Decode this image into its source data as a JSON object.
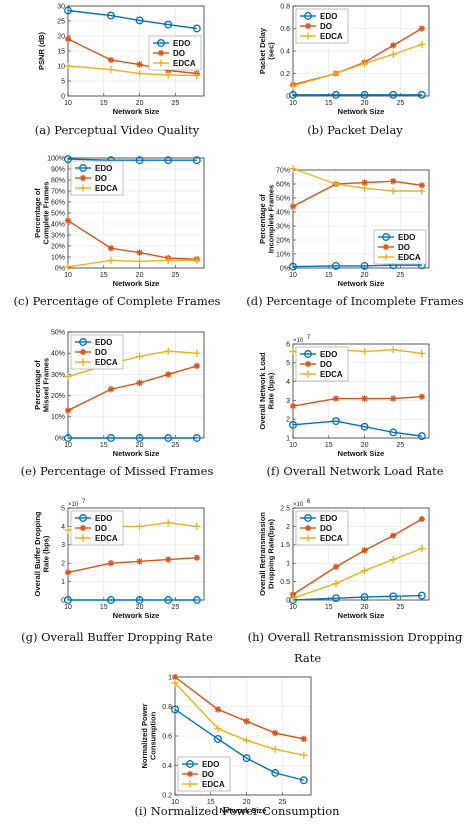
{
  "colors": {
    "EDO": "#0072BD",
    "DO": "#D95319",
    "EDCA": "#EDB120"
  },
  "chart_data": [
    {
      "id": "a",
      "type": "line",
      "caption": "(a) Perceptual Video Quality",
      "xlabel": "Network Size",
      "ylabel": "PSNR (dB)",
      "xlim": [
        10,
        29
      ],
      "ylim": [
        0,
        30
      ],
      "xticks": [
        10,
        15,
        20,
        25
      ],
      "yticks": [
        0,
        5,
        10,
        15,
        20,
        25,
        30
      ],
      "ytick_labels": [
        "0",
        "5",
        "10",
        "15",
        "20",
        "25",
        "30"
      ],
      "exponent": "",
      "legend": "right",
      "x": [
        10,
        16,
        20,
        24,
        28
      ],
      "series": [
        {
          "name": "EDO",
          "marker": "circle",
          "values": [
            28.5,
            26.8,
            25.2,
            23.8,
            22.5
          ]
        },
        {
          "name": "DO",
          "marker": "star",
          "values": [
            19,
            12,
            10.5,
            8.5,
            7.5
          ]
        },
        {
          "name": "EDCA",
          "marker": "plus",
          "values": [
            10,
            8.8,
            7.5,
            7,
            6.8
          ]
        }
      ]
    },
    {
      "id": "b",
      "type": "line",
      "caption": "(b) Packet Delay",
      "xlabel": "Network Size",
      "ylabel": "Packet Delay (sec)",
      "xlim": [
        10,
        29
      ],
      "ylim": [
        0,
        0.8
      ],
      "xticks": [
        10,
        15,
        20,
        25
      ],
      "yticks": [
        0,
        0.2,
        0.4,
        0.6,
        0.8
      ],
      "ytick_labels": [
        "0",
        "0.2",
        "0.4",
        "0.6",
        "0.8"
      ],
      "exponent": "",
      "legend": "top-left",
      "x": [
        10,
        16,
        20,
        24,
        28
      ],
      "series": [
        {
          "name": "EDO",
          "marker": "circle",
          "values": [
            0.01,
            0.01,
            0.01,
            0.01,
            0.01
          ]
        },
        {
          "name": "DO",
          "marker": "star",
          "values": [
            0.1,
            0.2,
            0.3,
            0.45,
            0.6
          ]
        },
        {
          "name": "EDCA",
          "marker": "plus",
          "values": [
            0.09,
            0.2,
            0.29,
            0.37,
            0.46
          ]
        }
      ]
    },
    {
      "id": "c",
      "type": "line",
      "caption": "(c) Percentage of Complete Frames",
      "xlabel": "Network Size",
      "ylabel": "Percentage of Complete Frames",
      "xlim": [
        10,
        29
      ],
      "ylim": [
        0,
        100
      ],
      "xticks": [
        10,
        15,
        20,
        25
      ],
      "yticks": [
        0,
        10,
        20,
        30,
        40,
        50,
        60,
        70,
        80,
        90,
        100
      ],
      "ytick_labels": [
        "0%",
        "10%",
        "20%",
        "30%",
        "40%",
        "50%",
        "60%",
        "70%",
        "80%",
        "90%",
        "100%"
      ],
      "exponent": "",
      "legend": "top-left",
      "x": [
        10,
        16,
        20,
        24,
        28
      ],
      "series": [
        {
          "name": "EDO",
          "marker": "circle",
          "values": [
            99,
            98,
            98,
            98,
            98
          ]
        },
        {
          "name": "DO",
          "marker": "star",
          "values": [
            43,
            18,
            14,
            9,
            8
          ]
        },
        {
          "name": "EDCA",
          "marker": "plus",
          "values": [
            1,
            7,
            6,
            7,
            7
          ]
        }
      ]
    },
    {
      "id": "d",
      "type": "line",
      "caption": "(d) Percentage of Incomplete Frames",
      "xlabel": "Network Size",
      "ylabel": "Percentage of Incomplete Frames",
      "xlim": [
        10,
        29
      ],
      "ylim": [
        0,
        70
      ],
      "xticks": [
        10,
        15,
        20,
        25
      ],
      "yticks": [
        0,
        10,
        20,
        30,
        40,
        50,
        60,
        70
      ],
      "ytick_labels": [
        "0%",
        "10%",
        "20%",
        "30%",
        "40%",
        "50%",
        "60%",
        "70%"
      ],
      "exponent": "",
      "legend": "bottom-right",
      "x": [
        10,
        16,
        20,
        24,
        28
      ],
      "series": [
        {
          "name": "EDO",
          "marker": "circle",
          "values": [
            1,
            1.5,
            1.5,
            2,
            2
          ]
        },
        {
          "name": "DO",
          "marker": "star",
          "values": [
            44,
            60,
            61,
            62,
            59
          ]
        },
        {
          "name": "EDCA",
          "marker": "plus",
          "values": [
            71,
            60,
            57,
            55,
            55
          ]
        }
      ]
    },
    {
      "id": "e",
      "type": "line",
      "caption": "(e) Percentage of Missed Frames",
      "xlabel": "Network Size",
      "ylabel": "Percentage of Missed Frames",
      "xlim": [
        10,
        29
      ],
      "ylim": [
        0,
        50
      ],
      "xticks": [
        10,
        15,
        20,
        25
      ],
      "yticks": [
        0,
        10,
        20,
        30,
        40,
        50
      ],
      "ytick_labels": [
        "0%",
        "10%",
        "20%",
        "30%",
        "40%",
        "50%"
      ],
      "exponent": "",
      "legend": "top-left",
      "x": [
        10,
        16,
        20,
        24,
        28
      ],
      "series": [
        {
          "name": "EDO",
          "marker": "circle",
          "values": [
            0,
            0,
            0,
            0,
            0
          ]
        },
        {
          "name": "DO",
          "marker": "star",
          "values": [
            13,
            23,
            26,
            30,
            34
          ]
        },
        {
          "name": "EDCA",
          "marker": "plus",
          "values": [
            29,
            35,
            38.5,
            41,
            40
          ]
        }
      ]
    },
    {
      "id": "f",
      "type": "line",
      "caption": "(f) Overall Network Load Rate",
      "xlabel": "Network Size",
      "ylabel": "Overall Network Load Rate (bps)",
      "xlim": [
        10,
        29
      ],
      "ylim": [
        1,
        6
      ],
      "xticks": [
        10,
        15,
        20,
        25
      ],
      "yticks": [
        1,
        2,
        3,
        4,
        5,
        6
      ],
      "ytick_labels": [
        "1",
        "2",
        "3",
        "4",
        "5",
        "6"
      ],
      "exponent": "7",
      "legend": "top-left",
      "x": [
        10,
        16,
        20,
        24,
        28
      ],
      "series": [
        {
          "name": "EDO",
          "marker": "circle",
          "values": [
            1.7,
            1.9,
            1.6,
            1.3,
            1.1
          ]
        },
        {
          "name": "DO",
          "marker": "star",
          "values": [
            2.7,
            3.1,
            3.1,
            3.1,
            3.2
          ]
        },
        {
          "name": "EDCA",
          "marker": "plus",
          "values": [
            5.6,
            5.7,
            5.6,
            5.7,
            5.5
          ]
        }
      ]
    },
    {
      "id": "g",
      "type": "line",
      "caption": "(g) Overall Buffer Dropping Rate",
      "xlabel": "Network Size",
      "ylabel": "Overall Buffer Dropping Rate (bps)",
      "xlim": [
        10,
        29
      ],
      "ylim": [
        0,
        5
      ],
      "xticks": [
        10,
        15,
        20,
        25
      ],
      "yticks": [
        0,
        1,
        2,
        3,
        4,
        5
      ],
      "ytick_labels": [
        "0",
        "1",
        "2",
        "3",
        "4",
        "5"
      ],
      "exponent": "7",
      "legend": "top-left",
      "x": [
        10,
        16,
        20,
        24,
        28
      ],
      "series": [
        {
          "name": "EDO",
          "marker": "circle",
          "values": [
            0,
            0,
            0,
            0,
            0
          ]
        },
        {
          "name": "DO",
          "marker": "star",
          "values": [
            1.5,
            2,
            2.1,
            2.2,
            2.3
          ]
        },
        {
          "name": "EDCA",
          "marker": "plus",
          "values": [
            3.8,
            4,
            4,
            4.2,
            4
          ]
        }
      ]
    },
    {
      "id": "h",
      "type": "line",
      "caption": "(h) Overall Retransmission Dropping",
      "caption2": "Rate",
      "xlabel": "Network Size",
      "ylabel": "Overall Retransmission Dropping Rate(bps)",
      "xlim": [
        10,
        29
      ],
      "ylim": [
        0,
        2.5
      ],
      "xticks": [
        10,
        15,
        20,
        25
      ],
      "yticks": [
        0,
        0.5,
        1,
        1.5,
        2,
        2.5
      ],
      "ytick_labels": [
        "0",
        "0.5",
        "1",
        "1.5",
        "2",
        "2.5"
      ],
      "exponent": "6",
      "legend": "top-left",
      "x": [
        10,
        16,
        20,
        24,
        28
      ],
      "series": [
        {
          "name": "EDO",
          "marker": "circle",
          "values": [
            0,
            0.05,
            0.08,
            0.1,
            0.12
          ]
        },
        {
          "name": "DO",
          "marker": "star",
          "values": [
            0.15,
            0.9,
            1.35,
            1.75,
            2.2
          ]
        },
        {
          "name": "EDCA",
          "marker": "plus",
          "values": [
            0.05,
            0.45,
            0.8,
            1.1,
            1.4
          ]
        }
      ]
    },
    {
      "id": "i",
      "type": "line",
      "caption": "(i) Normalized Power Consumption",
      "xlabel": "Network Size",
      "ylabel": "Normalized Power Consumption",
      "xlim": [
        10,
        29
      ],
      "ylim": [
        0.2,
        1
      ],
      "xticks": [
        10,
        15,
        20,
        25
      ],
      "yticks": [
        0.2,
        0.4,
        0.6,
        0.8,
        1
      ],
      "ytick_labels": [
        "0.2",
        "0.4",
        "0.6",
        "0.8",
        "1"
      ],
      "exponent": "",
      "legend": "bottom-left",
      "x": [
        10,
        16,
        20,
        24,
        28
      ],
      "series": [
        {
          "name": "EDO",
          "marker": "circle",
          "values": [
            0.78,
            0.58,
            0.45,
            0.35,
            0.3
          ]
        },
        {
          "name": "DO",
          "marker": "star",
          "values": [
            1,
            0.78,
            0.7,
            0.62,
            0.58
          ]
        },
        {
          "name": "EDCA",
          "marker": "plus",
          "values": [
            0.96,
            0.65,
            0.57,
            0.51,
            0.47
          ]
        }
      ]
    }
  ]
}
